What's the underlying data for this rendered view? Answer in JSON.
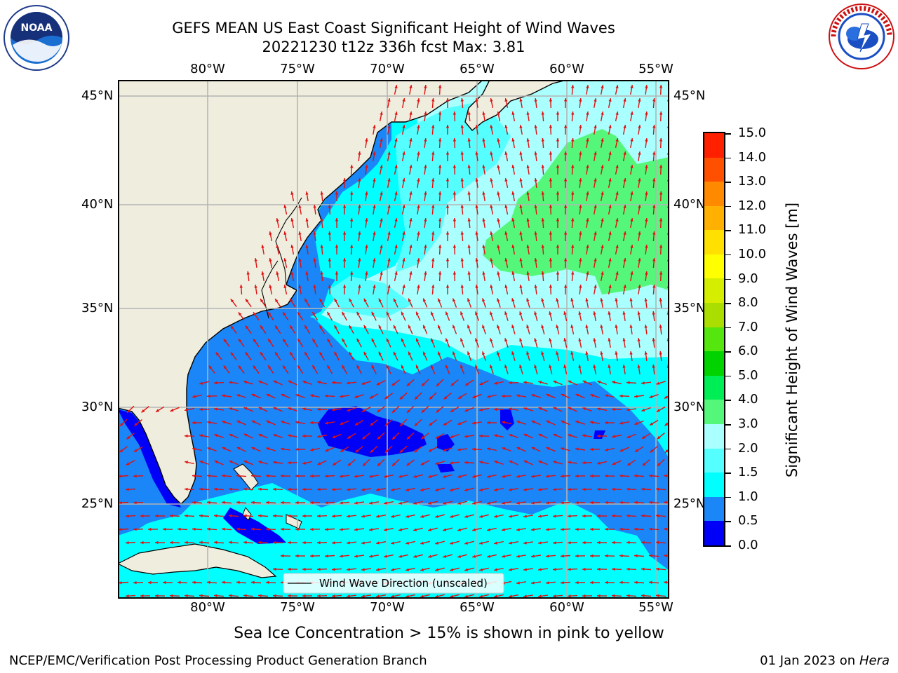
{
  "header": {
    "title_line1": "GEFS MEAN US East Coast Significant Height of Wind Waves",
    "title_line2": "20221230 t12z 336h fcst   Max: 3.81"
  },
  "map": {
    "lon_labels": [
      "80°W",
      "75°W",
      "70°W",
      "65°W",
      "60°W",
      "55°W"
    ],
    "lat_labels": [
      "45°N",
      "40°N",
      "35°N",
      "30°N",
      "25°N"
    ],
    "legend_label": "Wind Wave Direction (unscaled)",
    "arrow_color": "#e01010",
    "land_color": "#efedde",
    "dominant_bins": {
      "gulf_of_mexico": "0.5-1.0",
      "southeast_coast": "0.5-1.0",
      "sargasso_patch": "0.0-0.5",
      "caribbean": "1.0-1.5",
      "north_atlantic_east": "2.0-3.0",
      "maximum_region": "3.0-4.0"
    }
  },
  "colorbar": {
    "title": "Significant Height of Wind Waves [m]",
    "ticks": [
      "0.0",
      "0.5",
      "1.0",
      "1.5",
      "2.0",
      "3.0",
      "4.0",
      "5.0",
      "6.0",
      "7.0",
      "8.0",
      "9.0",
      "10.0",
      "11.0",
      "12.0",
      "13.0",
      "14.0",
      "15.0"
    ],
    "colors": [
      "#0000f8",
      "#1a86f8",
      "#00ffff",
      "#55ffff",
      "#aaffff",
      "#55f77a",
      "#00ee55",
      "#00d300",
      "#55e50f",
      "#aadd00",
      "#d5ee00",
      "#ffff00",
      "#ffe000",
      "#ffb000",
      "#ff8a00",
      "#ff5000",
      "#ff2000"
    ]
  },
  "footer": {
    "sea_ice_note": "Sea Ice Concentration > 15% is shown in pink to yellow",
    "branch": "NCEP/EMC/Verification Post Processing Product Generation Branch",
    "date": "01 Jan 2023 on ",
    "machine": "Hera"
  }
}
